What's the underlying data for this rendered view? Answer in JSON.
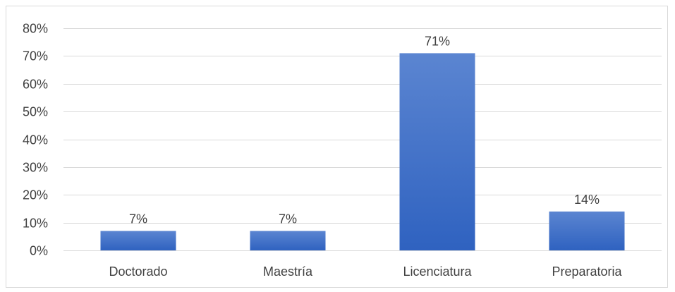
{
  "chart_data": {
    "type": "bar",
    "categories": [
      "Doctorado",
      "Maestría",
      "Licenciatura",
      "Preparatoria"
    ],
    "values": [
      7,
      7,
      71,
      14
    ],
    "data_labels": [
      "7%",
      "7%",
      "71%",
      "14%"
    ],
    "y_ticks": [
      0,
      10,
      20,
      30,
      40,
      50,
      60,
      70,
      80
    ],
    "y_tick_labels": [
      "0%",
      "10%",
      "20%",
      "30%",
      "40%",
      "50%",
      "60%",
      "70%",
      "80%"
    ],
    "ylim": [
      0,
      80
    ],
    "grid": true,
    "legend": "none",
    "colors": {
      "bar_top": "#5b85d1",
      "bar_bottom": "#2f62c0",
      "grid": "#d9d9d9",
      "text": "#404040"
    }
  }
}
